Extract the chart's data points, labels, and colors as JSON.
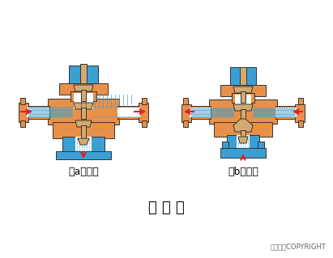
{
  "title": "三 通 阀",
  "subtitle_a": "（a）分流",
  "subtitle_b": "（b）合流",
  "copyright": "东方仿真COPYRIGHT",
  "bg_color": "#ffffff",
  "orange_color": "#E8904A",
  "blue_color": "#3B9FD4",
  "tan_color": "#D4AA70",
  "red_color": "#DD2222",
  "outline_color": "#333333",
  "title_fontsize": 13,
  "label_fontsize": 9,
  "copyright_fontsize": 6
}
